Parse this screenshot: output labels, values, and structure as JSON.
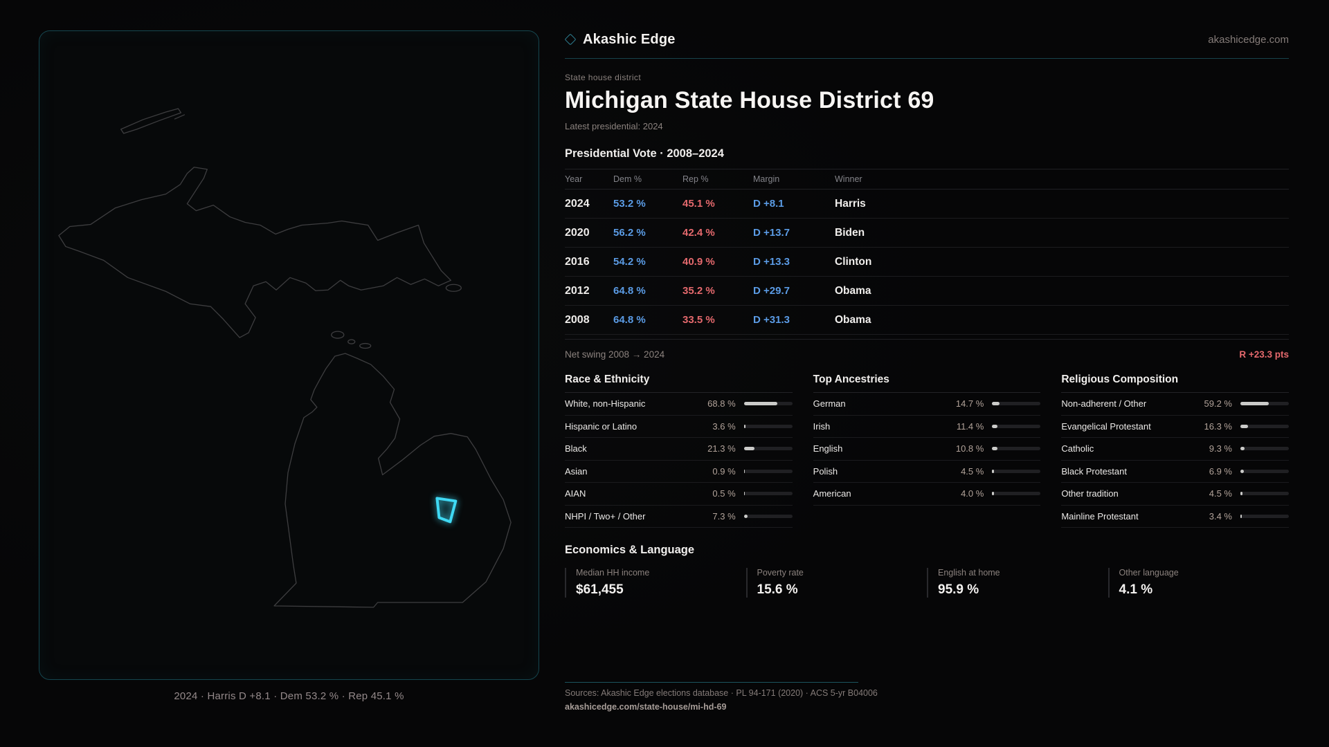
{
  "brand": {
    "name": "Akashic Edge",
    "domain": "akashicedge.com"
  },
  "page": {
    "eyebrow": "State house district",
    "title": "Michigan State House District 69",
    "subtitle": "Latest presidential: 2024"
  },
  "vote_table": {
    "title": "Presidential Vote · 2008–2024",
    "columns": {
      "year": "Year",
      "dem": "Dem %",
      "rep": "Rep %",
      "margin": "Margin",
      "winner": "Winner"
    },
    "rows": [
      {
        "year": "2024",
        "dem": "53.2 %",
        "rep": "45.1 %",
        "margin": "D +8.1",
        "winner": "Harris"
      },
      {
        "year": "2020",
        "dem": "56.2 %",
        "rep": "42.4 %",
        "margin": "D +13.7",
        "winner": "Biden"
      },
      {
        "year": "2016",
        "dem": "54.2 %",
        "rep": "40.9 %",
        "margin": "D +13.3",
        "winner": "Clinton"
      },
      {
        "year": "2012",
        "dem": "64.8 %",
        "rep": "35.2 %",
        "margin": "D +29.7",
        "winner": "Obama"
      },
      {
        "year": "2008",
        "dem": "64.8 %",
        "rep": "33.5 %",
        "margin": "D +31.3",
        "winner": "Obama"
      }
    ],
    "net_swing_label": "Net swing 2008 → 2024",
    "net_swing_value": "R +23.3 pts"
  },
  "panels": [
    {
      "title": "Race & Ethnicity",
      "rows": [
        {
          "label": "White, non-Hispanic",
          "value": "68.8 %",
          "pct": 68.8
        },
        {
          "label": "Hispanic or Latino",
          "value": "3.6 %",
          "pct": 3.6
        },
        {
          "label": "Black",
          "value": "21.3 %",
          "pct": 21.3
        },
        {
          "label": "Asian",
          "value": "0.9 %",
          "pct": 0.9
        },
        {
          "label": "AIAN",
          "value": "0.5 %",
          "pct": 0.5
        },
        {
          "label": "NHPI / Two+ / Other",
          "value": "7.3 %",
          "pct": 7.3
        }
      ]
    },
    {
      "title": "Top Ancestries",
      "rows": [
        {
          "label": "German",
          "value": "14.7 %",
          "pct": 14.7
        },
        {
          "label": "Irish",
          "value": "11.4 %",
          "pct": 11.4
        },
        {
          "label": "English",
          "value": "10.8 %",
          "pct": 10.8
        },
        {
          "label": "Polish",
          "value": "4.5 %",
          "pct": 4.5
        },
        {
          "label": "American",
          "value": "4.0 %",
          "pct": 4.0
        }
      ]
    },
    {
      "title": "Religious Composition",
      "rows": [
        {
          "label": "Non-adherent / Other",
          "value": "59.2 %",
          "pct": 59.2
        },
        {
          "label": "Evangelical Protestant",
          "value": "16.3 %",
          "pct": 16.3
        },
        {
          "label": "Catholic",
          "value": "9.3 %",
          "pct": 9.3
        },
        {
          "label": "Black Protestant",
          "value": "6.9 %",
          "pct": 6.9
        },
        {
          "label": "Other tradition",
          "value": "4.5 %",
          "pct": 4.5
        },
        {
          "label": "Mainline Protestant",
          "value": "3.4 %",
          "pct": 3.4
        }
      ]
    }
  ],
  "economics": {
    "title": "Economics & Language",
    "stats": [
      {
        "label": "Median HH income",
        "value": "$61,455"
      },
      {
        "label": "Poverty rate",
        "value": "15.6 %"
      },
      {
        "label": "English at home",
        "value": "95.9 %"
      },
      {
        "label": "Other language",
        "value": "4.1 %"
      }
    ]
  },
  "map": {
    "caption": "2024 · Harris D +8.1 · Dem 53.2 % · Rep 45.1 %",
    "outline_color": "#3e3e40",
    "district_color": "#3fd9f4"
  },
  "footer": {
    "sources": "Sources: Akashic Edge elections database · PL 94-171 (2020) · ACS 5-yr B04006",
    "permalink": "akashicedge.com/state-house/mi-hd-69"
  },
  "colors": {
    "dem": "#5b9ce6",
    "rep": "#e5696d",
    "accent": "#3fd9f4"
  }
}
